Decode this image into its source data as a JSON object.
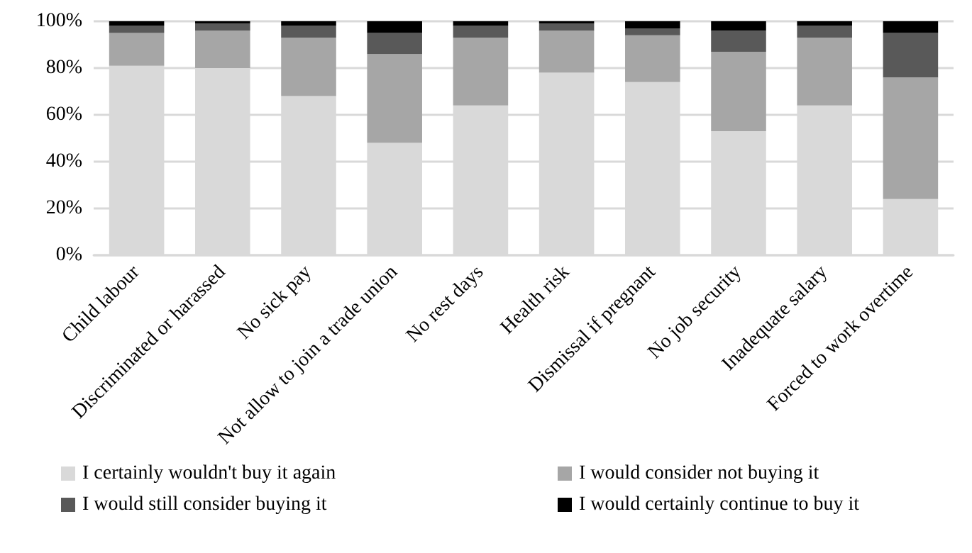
{
  "chart_data": {
    "type": "bar",
    "stacked": true,
    "categories": [
      "Child labour",
      "Discriminated or harassed",
      "No sick pay",
      "Not allow to join a trade union",
      "No rest days",
      "Health risk",
      "Dismissal if pregnant",
      "No job security",
      "Inadequate salary",
      "Forced to work overtime"
    ],
    "series": [
      {
        "name": "I certainly wouldn't buy it again",
        "color": "#d9d9d9",
        "values": [
          81,
          80,
          68,
          48,
          64,
          78,
          74,
          53,
          64,
          24
        ]
      },
      {
        "name": "I would consider not buying it",
        "color": "#a6a6a6",
        "values": [
          14,
          16,
          25,
          38,
          29,
          18,
          20,
          34,
          29,
          52
        ]
      },
      {
        "name": "I would still consider buying it",
        "color": "#595959",
        "values": [
          3,
          3,
          5,
          9,
          5,
          3,
          3,
          9,
          5,
          19
        ]
      },
      {
        "name": "I would certainly continue to buy it",
        "color": "#000000",
        "values": [
          2,
          1,
          2,
          5,
          2,
          1,
          3,
          4,
          2,
          5
        ]
      }
    ],
    "ylim": [
      0,
      100
    ],
    "yticks": [
      {
        "value": 0,
        "label": "0%"
      },
      {
        "value": 20,
        "label": "20%"
      },
      {
        "value": 40,
        "label": "40%"
      },
      {
        "value": 60,
        "label": "60%"
      },
      {
        "value": 80,
        "label": "80%"
      },
      {
        "value": 100,
        "label": "100%"
      }
    ],
    "grid": "y",
    "legend": "bottom"
  }
}
